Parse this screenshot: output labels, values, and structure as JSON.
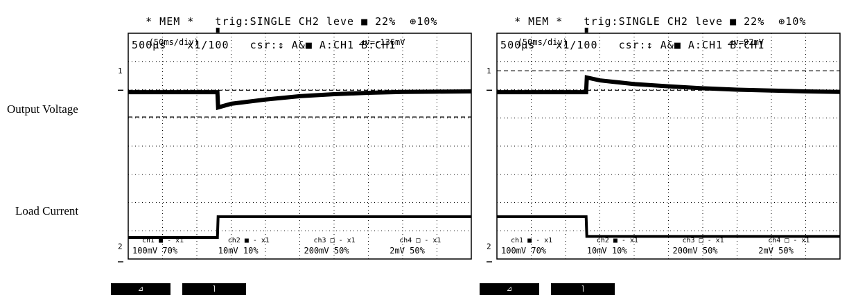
{
  "labels": {
    "output_voltage": "Output Voltage",
    "load_current": "Load Current"
  },
  "scopes": [
    {
      "header_line1": "* MEM *   trig:SINGLE CH2 leve ■ 22%  ⊕10%",
      "header_line2": "  500µs   x1/100   csr:↕ A&■ A:CH1 B:CH1",
      "timebase": "(50ms/div)",
      "delta": "⊿v=-136mV",
      "marker_1": "1",
      "marker_2": "2",
      "channels": [
        {
          "name": "ch1 ■ - x1",
          "value": "100mV 70%"
        },
        {
          "name": "ch2 ■ - x1",
          "value": "10mV 10%"
        },
        {
          "name": "ch3 □ - x1",
          "value": "200mV 50%"
        },
        {
          "name": "ch4 □ - x1",
          "value": "2mV 50%"
        }
      ],
      "softkeys": [
        "⊿",
        "⌉"
      ]
    },
    {
      "header_line1": "* MEM *   trig:SINGLE CH2 leve ■ 22%  ⊕10%",
      "header_line2": "  500µs   x1/100   csr:↕ A&■ A:CH1 B:CH1",
      "timebase": "(50ms/div)",
      "delta": "⊿v=92mV",
      "marker_1": "1",
      "marker_2": "2",
      "channels": [
        {
          "name": "ch1 ■ - x1",
          "value": "100mV 70%"
        },
        {
          "name": "ch2 ■ - x1",
          "value": "10mV 10%"
        },
        {
          "name": "ch3 □ - x1",
          "value": "200mV 50%"
        },
        {
          "name": "ch4 □ - x1",
          "value": "2mV 50%"
        }
      ],
      "softkeys": [
        "⊿",
        "⌉"
      ]
    }
  ],
  "chart_data": [
    {
      "type": "line",
      "title": "",
      "xlabel": "",
      "ylabel": "",
      "grid": true,
      "x_unit": "div",
      "xlim": [
        0,
        10
      ],
      "ylim": [
        0,
        8
      ],
      "y_unit": "div",
      "series": [
        {
          "name": "Output Voltage",
          "color": "#000000",
          "x": [
            0,
            2.6,
            2.62,
            3,
            4,
            5,
            6,
            7,
            8,
            9,
            10
          ],
          "y": [
            5.91,
            5.91,
            5.37,
            5.5,
            5.65,
            5.77,
            5.84,
            5.89,
            5.92,
            5.93,
            5.94
          ]
        },
        {
          "name": "Load Current",
          "color": "#000000",
          "x": [
            0,
            2.6,
            2.62,
            10
          ],
          "y": [
            0.76,
            0.76,
            1.5,
            1.5
          ]
        }
      ],
      "cursor_levels_div": [
        5.98,
        5.03
      ],
      "trigger_position_div": 2.6
    },
    {
      "type": "line",
      "title": "",
      "xlabel": "",
      "ylabel": "",
      "grid": true,
      "x_unit": "div",
      "xlim": [
        0,
        10
      ],
      "ylim": [
        0,
        8
      ],
      "y_unit": "div",
      "series": [
        {
          "name": "Output Voltage",
          "color": "#000000",
          "x": [
            0,
            2.6,
            2.62,
            3,
            4,
            5,
            6,
            7,
            8,
            9,
            10
          ],
          "y": [
            5.91,
            5.91,
            6.43,
            6.33,
            6.2,
            6.12,
            6.05,
            6.0,
            5.97,
            5.94,
            5.92
          ]
        },
        {
          "name": "Load Current",
          "color": "#000000",
          "x": [
            0,
            2.6,
            2.62,
            10
          ],
          "y": [
            1.5,
            1.5,
            0.8,
            0.8
          ]
        }
      ],
      "cursor_levels_div": [
        6.67,
        5.98
      ],
      "trigger_position_div": 2.6
    }
  ]
}
